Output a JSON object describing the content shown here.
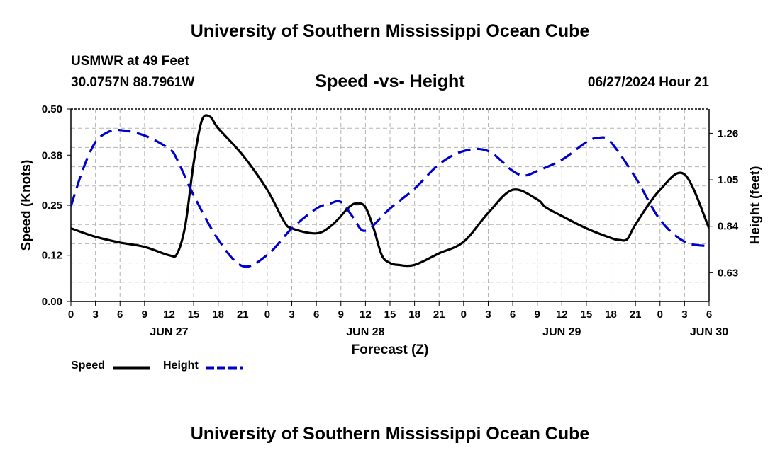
{
  "header": {
    "title": "University of Southern Mississippi Ocean Cube",
    "station": "USMWR at 49 Feet",
    "coords": "30.0757N  88.7961W",
    "timestamp": "06/27/2024 Hour 21",
    "footer_title": "University of Southern Mississippi Ocean Cube"
  },
  "legend": {
    "speed_label": "Speed",
    "height_label": "Height"
  },
  "chart_data": {
    "type": "line",
    "title": "Speed -vs- Height",
    "xlabel": "Forecast (Z)",
    "ylabel": "Speed (Knots)",
    "y2label": "Height (feet)",
    "xlim": [
      0,
      78
    ],
    "ylim": [
      0,
      0.5
    ],
    "y2lim": [
      0.5,
      1.37
    ],
    "grid": true,
    "x_ticks": [
      0,
      3,
      6,
      9,
      12,
      15,
      18,
      21,
      24,
      27,
      30,
      33,
      36,
      39,
      42,
      45,
      48,
      51,
      54,
      57,
      60,
      63,
      66,
      69,
      72,
      75,
      78
    ],
    "x_tick_labels": [
      "0",
      "3",
      "6",
      "9",
      "12",
      "15",
      "18",
      "21",
      "0",
      "3",
      "6",
      "9",
      "12",
      "15",
      "18",
      "21",
      "0",
      "3",
      "6",
      "9",
      "12",
      "15",
      "18",
      "21",
      "0",
      "3",
      "6"
    ],
    "date_labels": [
      {
        "x": 12,
        "label": "JUN 27"
      },
      {
        "x": 36,
        "label": "JUN 28"
      },
      {
        "x": 60,
        "label": "JUN 29"
      },
      {
        "x": 78,
        "label": "JUN 30"
      }
    ],
    "y_ticks": [
      0,
      0.12,
      0.25,
      0.38,
      0.5
    ],
    "y_tick_labels": [
      "0.00",
      "0.12",
      "0.25",
      "0.38",
      "0.50"
    ],
    "y2_ticks": [
      0.63,
      0.84,
      1.05,
      1.26
    ],
    "y2_tick_labels": [
      "0.63",
      "0.84",
      "1.05",
      "1.26"
    ],
    "series": [
      {
        "name": "Speed",
        "axis": "left",
        "color": "#000000",
        "dash": "solid",
        "x": [
          0,
          3,
          6,
          9,
          12,
          13,
          14,
          15,
          16,
          17,
          18,
          21,
          24,
          26,
          27,
          30,
          32,
          34,
          35,
          36,
          37,
          38,
          39,
          40,
          42,
          45,
          48,
          51,
          54,
          57,
          58,
          60,
          63,
          66,
          67,
          68,
          69,
          72,
          75,
          78
        ],
        "values": [
          0.19,
          0.168,
          0.153,
          0.142,
          0.12,
          0.125,
          0.2,
          0.36,
          0.47,
          0.48,
          0.45,
          0.38,
          0.29,
          0.21,
          0.19,
          0.177,
          0.2,
          0.245,
          0.255,
          0.245,
          0.19,
          0.12,
          0.1,
          0.095,
          0.095,
          0.125,
          0.155,
          0.23,
          0.29,
          0.265,
          0.245,
          0.222,
          0.19,
          0.165,
          0.16,
          0.162,
          0.2,
          0.29,
          0.33,
          0.19
        ]
      },
      {
        "name": "Height",
        "axis": "right",
        "color": "#0000cc",
        "dash": "dashed",
        "x": [
          0,
          1.5,
          3,
          4.5,
          6,
          9,
          12,
          13,
          15,
          18,
          21,
          24,
          27,
          30,
          31.5,
          33,
          34.5,
          36,
          39,
          42,
          45,
          48,
          51,
          54,
          55.5,
          57,
          60,
          63,
          64.5,
          66,
          69,
          72,
          75,
          78
        ],
        "values": [
          0.93,
          1.1,
          1.22,
          1.265,
          1.275,
          1.25,
          1.19,
          1.14,
          0.98,
          0.78,
          0.66,
          0.71,
          0.83,
          0.92,
          0.94,
          0.95,
          0.88,
          0.82,
          0.92,
          1.01,
          1.12,
          1.18,
          1.18,
          1.09,
          1.07,
          1.09,
          1.14,
          1.22,
          1.24,
          1.22,
          1.06,
          0.87,
          0.77,
          0.75
        ]
      }
    ]
  }
}
